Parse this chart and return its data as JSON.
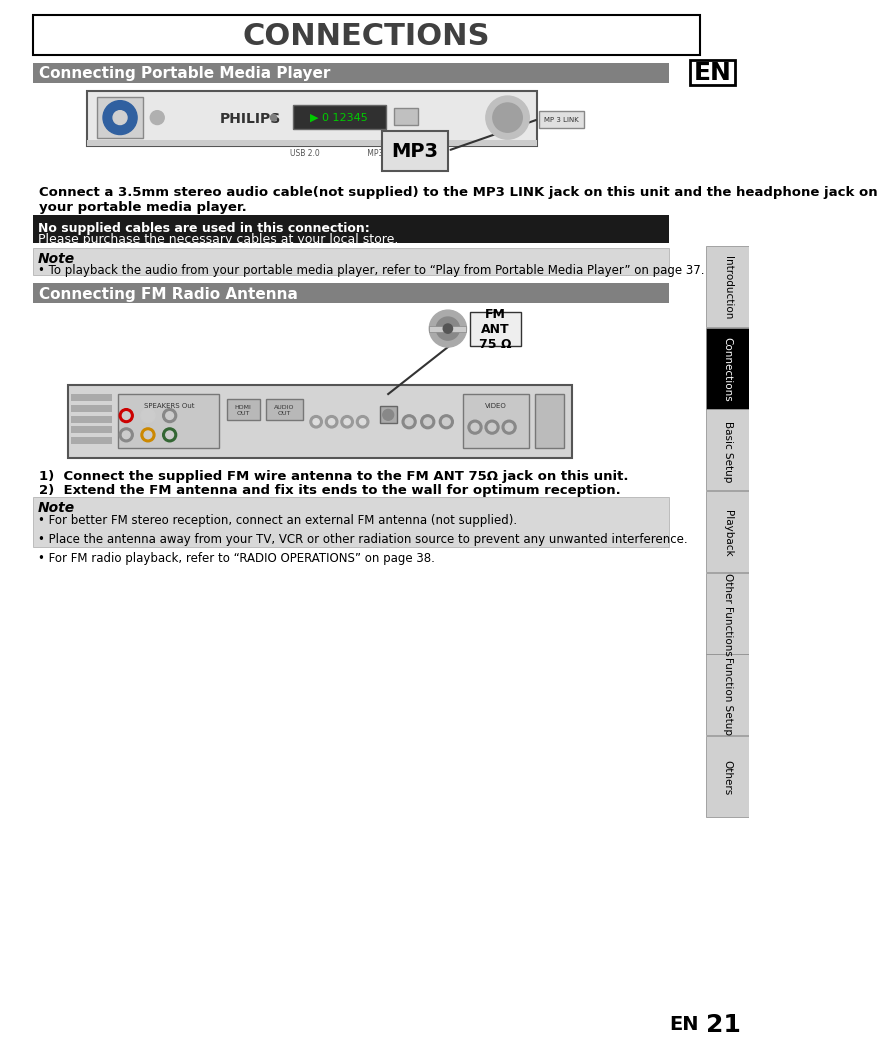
{
  "title": "CONNECTIONS",
  "section1_title": "Connecting Portable Media Player",
  "section2_title": "Connecting FM Radio Antenna",
  "en_label": "EN",
  "page_number": "21",
  "body_text1": "Connect a 3.5mm stereo audio cable(not supplied) to the MP3 LINK jack on this unit and the headphone jack on\nyour portable media player.",
  "warning_title": "No supplied cables are used in this connection:",
  "warning_body": "Please purchase the necessary cables at your local store.",
  "note1_title": "Note",
  "note1_body": "• To playback the audio from your portable media player, refer to “Play from Portable Media Player” on page 37.",
  "step1": "1)  Connect the supplied FM wire antenna to the FM ANT 75Ω jack on this unit.",
  "step2": "2)  Extend the FM antenna and fix its ends to the wall for optimum reception.",
  "note2_title": "Note",
  "note2_body": "• For better FM stereo reception, connect an external FM antenna (not supplied).\n• Place the antenna away from your TV, VCR or other radiation source to prevent any unwanted interference.\n• For FM radio playback, refer to “RADIO OPERATIONS” on page 38.",
  "sidebar_items": [
    "Introduction",
    "Connections",
    "Basic Setup",
    "Playback",
    "Other Functions",
    "Function Setup",
    "Others"
  ],
  "sidebar_active": "Connections",
  "bg_color": "#ffffff",
  "section_header_bg": "#808080",
  "section_header_fg": "#ffffff",
  "warning_bg": "#1a1a1a",
  "warning_fg": "#ffffff",
  "note_bg": "#d8d8d8",
  "note_fg": "#000000",
  "sidebar_bg": "#d0d0d0",
  "sidebar_active_bg": "#000000",
  "sidebar_active_fg": "#ffffff",
  "sidebar_inactive_fg": "#000000",
  "title_color": "#404040",
  "mp3_box_color": "#e0e0e0",
  "fm_ant_label": "FM\nANT\n75 Ω"
}
